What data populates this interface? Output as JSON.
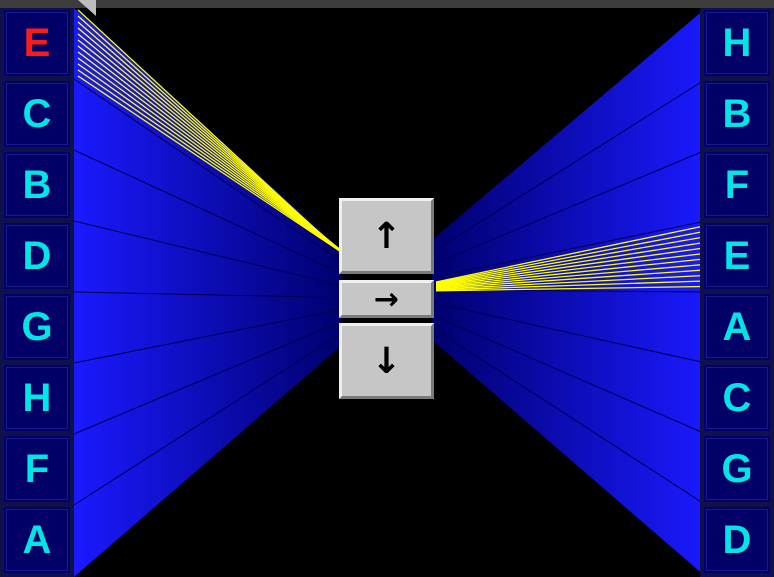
{
  "left_column": {
    "letters": [
      "E",
      "C",
      "B",
      "D",
      "G",
      "H",
      "F",
      "A"
    ],
    "highlighted_index": 0
  },
  "right_column": {
    "letters": [
      "H",
      "B",
      "F",
      "E",
      "A",
      "C",
      "G",
      "D"
    ],
    "highlighted_index": -1
  },
  "controls": {
    "up_symbol": "↑",
    "right_symbol": "→",
    "down_symbol": "↓"
  },
  "colors": {
    "letter": "#00e5e5",
    "letter_highlight": "#ff1a1a",
    "wall_blue": "#0a10ff",
    "beam_yellow": "#ffff00",
    "background": "#000000"
  },
  "icons": {
    "up": "arrow-up-icon",
    "right": "arrow-right-icon",
    "down": "arrow-down-icon"
  }
}
